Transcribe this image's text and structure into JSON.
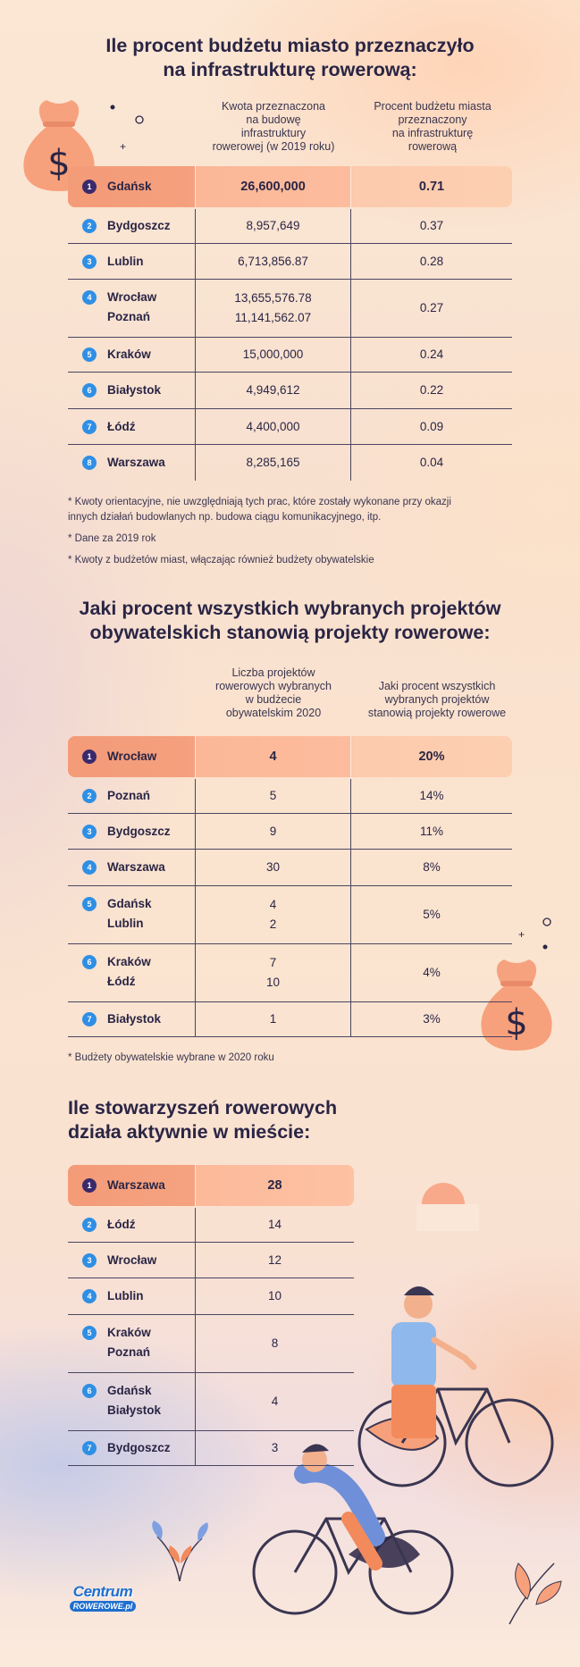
{
  "section1": {
    "title_lines": [
      "Ile procent budżetu miasto przeznaczyło",
      "na infrastrukturę rowerową:"
    ],
    "col2_lines": [
      "Kwota przeznaczona",
      "na budowę",
      "infrastruktury",
      "rowerowej (w 2019 roku)"
    ],
    "col3_lines": [
      "Procent budżetu miasta",
      "przeznaczony",
      "na infrastrukturę",
      "rowerową"
    ],
    "rows": [
      {
        "rank": "1",
        "cities": [
          "Gdańsk"
        ],
        "amounts": [
          "26,600,000"
        ],
        "percent": "0.71"
      },
      {
        "rank": "2",
        "cities": [
          "Bydgoszcz"
        ],
        "amounts": [
          "8,957,649"
        ],
        "percent": "0.37"
      },
      {
        "rank": "3",
        "cities": [
          "Lublin"
        ],
        "amounts": [
          "6,713,856.87"
        ],
        "percent": "0.28"
      },
      {
        "rank": "4",
        "cities": [
          "Wrocław",
          "Poznań"
        ],
        "amounts": [
          "13,655,576.78",
          "11,141,562.07"
        ],
        "percent": "0.27"
      },
      {
        "rank": "5",
        "cities": [
          "Kraków"
        ],
        "amounts": [
          "15,000,000"
        ],
        "percent": "0.24"
      },
      {
        "rank": "6",
        "cities": [
          "Białystok"
        ],
        "amounts": [
          "4,949,612"
        ],
        "percent": "0.22"
      },
      {
        "rank": "7",
        "cities": [
          "Łódź"
        ],
        "amounts": [
          "4,400,000"
        ],
        "percent": "0.09"
      },
      {
        "rank": "8",
        "cities": [
          "Warszawa"
        ],
        "amounts": [
          "8,285,165"
        ],
        "percent": "0.04"
      }
    ],
    "notes": [
      "* Kwoty orientacyjne, nie uwzględniają tych prac, które zostały wykonane przy okazji",
      "innych działań budowlanych np. budowa ciągu komunikacyjnego, itp.",
      "* Dane za 2019 rok",
      "* Kwoty z budżetów miast, włączając również budżety obywatelskie"
    ]
  },
  "section2": {
    "title_lines": [
      "Jaki procent wszystkich wybranych projektów",
      "obywatelskich stanowią projekty rowerowe:"
    ],
    "col2_lines": [
      "Liczba projektów",
      "rowerowych wybranych",
      "w budżecie",
      "obywatelskim 2020"
    ],
    "col3_lines": [
      "Jaki procent wszystkich",
      "wybranych projektów",
      "stanowią projekty rowerowe"
    ],
    "rows": [
      {
        "rank": "1",
        "cities": [
          "Wrocław"
        ],
        "counts": [
          "4"
        ],
        "percent": "20%"
      },
      {
        "rank": "2",
        "cities": [
          "Poznań"
        ],
        "counts": [
          "5"
        ],
        "percent": "14%"
      },
      {
        "rank": "3",
        "cities": [
          "Bydgoszcz"
        ],
        "counts": [
          "9"
        ],
        "percent": "11%"
      },
      {
        "rank": "4",
        "cities": [
          "Warszawa"
        ],
        "counts": [
          "30"
        ],
        "percent": "8%"
      },
      {
        "rank": "5",
        "cities": [
          "Gdańsk",
          "Lublin"
        ],
        "counts": [
          "4",
          "2"
        ],
        "percent": "5%"
      },
      {
        "rank": "6",
        "cities": [
          "Kraków",
          "Łódź"
        ],
        "counts": [
          "7",
          "10"
        ],
        "percent": "4%"
      },
      {
        "rank": "7",
        "cities": [
          "Białystok"
        ],
        "counts": [
          "1"
        ],
        "percent": "3%"
      }
    ],
    "notes": [
      "* Budżety obywatelskie wybrane w 2020 roku"
    ]
  },
  "section3": {
    "title_lines": [
      "Ile stowarzyszeń rowerowych",
      "działa aktywnie w mieście:"
    ],
    "rows": [
      {
        "rank": "1",
        "cities": [
          "Warszawa"
        ],
        "counts": [
          "28"
        ]
      },
      {
        "rank": "2",
        "cities": [
          "Łódź"
        ],
        "counts": [
          "14"
        ]
      },
      {
        "rank": "3",
        "cities": [
          "Wrocław"
        ],
        "counts": [
          "12"
        ]
      },
      {
        "rank": "4",
        "cities": [
          "Lublin"
        ],
        "counts": [
          "10"
        ]
      },
      {
        "rank": "5",
        "cities": [
          "Kraków",
          "Poznań"
        ],
        "counts": [
          "8"
        ]
      },
      {
        "rank": "6",
        "cities": [
          "Gdańsk",
          "Białystok"
        ],
        "counts": [
          "4"
        ]
      },
      {
        "rank": "7",
        "cities": [
          "Bydgoszcz"
        ],
        "counts": [
          "3"
        ]
      }
    ]
  },
  "logo": {
    "line1": "Centrum",
    "line2": "ROWEROWE.pl"
  },
  "icons": [
    "money-bag-icon",
    "cyclist-illustration",
    "leaf-plant-icon",
    "sun-icon"
  ],
  "colors": {
    "accent": "#f6a27f",
    "badge": "#2f8fe4",
    "badge_first": "#3a2a6b",
    "text": "#2a2545"
  }
}
